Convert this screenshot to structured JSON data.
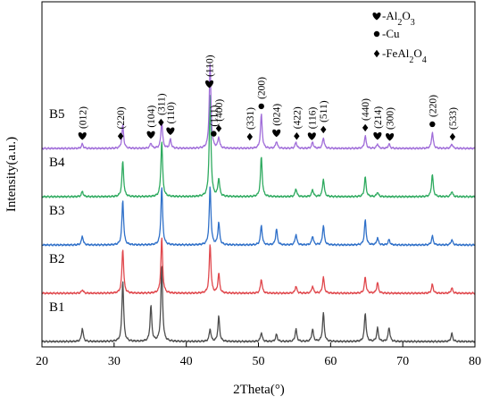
{
  "chart_data": {
    "type": "line",
    "title": "",
    "xlabel": "2Theta(°)",
    "ylabel": "Intensity(a.u.)",
    "xlim": [
      20,
      80
    ],
    "x_ticks": [
      "20",
      "30",
      "40",
      "50",
      "60",
      "70",
      "80"
    ],
    "grid": false,
    "legend_placement": "top-right",
    "legend": [
      {
        "symbol": "heart",
        "text": "-Al2O3",
        "base": "-Al",
        "sub1": "2",
        "mid": "O",
        "sub2": "3"
      },
      {
        "symbol": "dot",
        "text": "-Cu",
        "base": "-Cu"
      },
      {
        "symbol": "diamond",
        "text": "-FeAl2O4",
        "base": "-FeAl",
        "sub1": "2",
        "mid": "O",
        "sub2": "4"
      }
    ],
    "series": [
      {
        "name": "B1",
        "color": "#4d4d4d",
        "offset": 0,
        "peaks": [
          [
            25.6,
            15
          ],
          [
            31.2,
            68
          ],
          [
            35.1,
            40
          ],
          [
            36.6,
            85
          ],
          [
            43.3,
            14
          ],
          [
            44.5,
            28
          ],
          [
            50.4,
            10
          ],
          [
            52.5,
            8
          ],
          [
            55.2,
            14
          ],
          [
            57.5,
            14
          ],
          [
            59.0,
            32
          ],
          [
            64.8,
            32
          ],
          [
            66.5,
            15
          ],
          [
            68.1,
            16
          ],
          [
            76.8,
            9
          ]
        ]
      },
      {
        "name": "B2",
        "color": "#e0474c",
        "offset": 1,
        "peaks": [
          [
            25.6,
            4
          ],
          [
            31.2,
            50
          ],
          [
            36.6,
            62
          ],
          [
            43.3,
            55
          ],
          [
            44.5,
            22
          ],
          [
            50.4,
            16
          ],
          [
            55.2,
            8
          ],
          [
            57.5,
            8
          ],
          [
            59.0,
            18
          ],
          [
            64.8,
            18
          ],
          [
            66.5,
            12
          ],
          [
            74.1,
            10
          ],
          [
            76.8,
            6
          ]
        ]
      },
      {
        "name": "B3",
        "color": "#2f70c9",
        "offset": 2,
        "peaks": [
          [
            25.6,
            10
          ],
          [
            31.2,
            50
          ],
          [
            36.6,
            65
          ],
          [
            43.3,
            65
          ],
          [
            44.5,
            25
          ],
          [
            50.4,
            22
          ],
          [
            52.5,
            18
          ],
          [
            55.2,
            12
          ],
          [
            57.5,
            10
          ],
          [
            59.0,
            22
          ],
          [
            64.8,
            28
          ],
          [
            66.5,
            8
          ],
          [
            68.1,
            6
          ],
          [
            74.1,
            10
          ],
          [
            76.8,
            6
          ]
        ]
      },
      {
        "name": "B4",
        "color": "#2eaa5f",
        "offset": 3,
        "peaks": [
          [
            25.6,
            6
          ],
          [
            31.2,
            40
          ],
          [
            36.6,
            62
          ],
          [
            43.3,
            115
          ],
          [
            44.5,
            20
          ],
          [
            50.4,
            45
          ],
          [
            55.2,
            9
          ],
          [
            57.5,
            8
          ],
          [
            59.0,
            20
          ],
          [
            64.8,
            22
          ],
          [
            66.5,
            5
          ],
          [
            74.1,
            25
          ],
          [
            76.8,
            6
          ]
        ]
      },
      {
        "name": "B5",
        "color": "#a06dd9",
        "offset": 4,
        "peaks": [
          [
            25.6,
            5
          ],
          [
            31.2,
            26
          ],
          [
            35.1,
            6
          ],
          [
            36.6,
            30
          ],
          [
            37.8,
            10
          ],
          [
            43.3,
            95
          ],
          [
            44.5,
            12
          ],
          [
            50.4,
            38
          ],
          [
            52.5,
            8
          ],
          [
            55.2,
            7
          ],
          [
            57.5,
            7
          ],
          [
            59.0,
            12
          ],
          [
            64.8,
            14
          ],
          [
            66.5,
            5
          ],
          [
            68.1,
            5
          ],
          [
            74.1,
            18
          ],
          [
            76.8,
            5
          ]
        ]
      }
    ],
    "annotations": [
      {
        "label": "(012)",
        "x": 25.6,
        "marker": "heart"
      },
      {
        "label": "(220)",
        "x": 30.9,
        "marker": "diamond"
      },
      {
        "label": "(104)",
        "x": 35.1,
        "marker": "heart"
      },
      {
        "label": "(311)",
        "x": 36.5,
        "marker": "diamond"
      },
      {
        "label": "(110)",
        "x": 37.8,
        "marker": "heart"
      },
      {
        "label": "(110)",
        "x": 43.2,
        "marker": "heart"
      },
      {
        "label": "(111)",
        "x": 43.8,
        "marker": "dot"
      },
      {
        "label": "(400)",
        "x": 44.5,
        "marker": "diamond"
      },
      {
        "label": "(331)",
        "x": 48.8,
        "marker": "diamond"
      },
      {
        "label": "(200)",
        "x": 50.4,
        "marker": "dot"
      },
      {
        "label": "(024)",
        "x": 52.5,
        "marker": "heart"
      },
      {
        "label": "(422)",
        "x": 55.3,
        "marker": "diamond"
      },
      {
        "label": "(116)",
        "x": 57.4,
        "marker": "heart"
      },
      {
        "label": "(511)",
        "x": 59.0,
        "marker": "diamond"
      },
      {
        "label": "(440)",
        "x": 64.8,
        "marker": "diamond"
      },
      {
        "label": "(214)",
        "x": 66.5,
        "marker": "heart"
      },
      {
        "label": "(300)",
        "x": 68.2,
        "marker": "heart"
      },
      {
        "label": "(220)",
        "x": 74.1,
        "marker": "dot"
      },
      {
        "label": "(533)",
        "x": 76.9,
        "marker": "diamond"
      }
    ]
  }
}
